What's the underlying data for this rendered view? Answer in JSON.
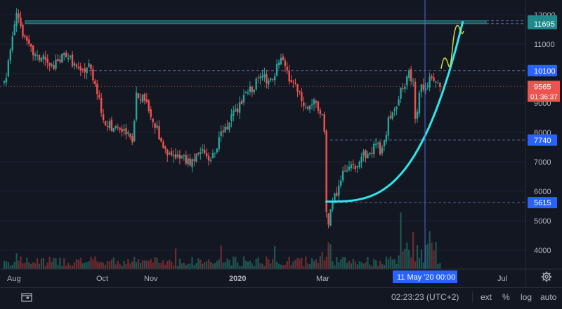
{
  "chart_data": {
    "type": "candlestick",
    "title": "",
    "ylim": [
      3500,
      12400
    ],
    "y_ticks": [
      4000,
      5000,
      6000,
      7000,
      8000,
      9000,
      10000,
      11000,
      12000
    ],
    "x_tick_labels": [
      "Aug",
      "Oct",
      "Nov",
      "2020",
      "Mar",
      "Jul"
    ],
    "crosshair_x_label": "11 May '20   00:00",
    "price_series": [
      [
        0,
        9700
      ],
      [
        2,
        10300
      ],
      [
        4,
        11200
      ],
      [
        6,
        12200
      ],
      [
        8,
        11600
      ],
      [
        10,
        11100
      ],
      [
        13,
        10800
      ],
      [
        16,
        10500
      ],
      [
        19,
        10600
      ],
      [
        22,
        10200
      ],
      [
        26,
        10400
      ],
      [
        30,
        10700
      ],
      [
        33,
        10400
      ],
      [
        37,
        10000
      ],
      [
        41,
        10300
      ],
      [
        44,
        9700
      ],
      [
        46,
        9200
      ],
      [
        48,
        8300
      ],
      [
        50,
        8300
      ],
      [
        53,
        8100
      ],
      [
        56,
        8100
      ],
      [
        59,
        8000
      ],
      [
        62,
        7600
      ],
      [
        63,
        8400
      ],
      [
        64,
        9300
      ],
      [
        66,
        9100
      ],
      [
        68,
        9200
      ],
      [
        70,
        8800
      ],
      [
        72,
        8300
      ],
      [
        74,
        8100
      ],
      [
        76,
        7600
      ],
      [
        78,
        7300
      ],
      [
        81,
        7200
      ],
      [
        84,
        7200
      ],
      [
        87,
        7100
      ],
      [
        90,
        7000
      ],
      [
        93,
        7200
      ],
      [
        96,
        7400
      ],
      [
        99,
        7100
      ],
      [
        102,
        7300
      ],
      [
        105,
        7900
      ],
      [
        108,
        8200
      ],
      [
        111,
        8600
      ],
      [
        114,
        8900
      ],
      [
        117,
        9300
      ],
      [
        120,
        9500
      ],
      [
        123,
        9800
      ],
      [
        125,
        9900
      ],
      [
        127,
        9800
      ],
      [
        130,
        9700
      ],
      [
        132,
        10200
      ],
      [
        134,
        10400
      ],
      [
        136,
        10300
      ],
      [
        138,
        9800
      ],
      [
        140,
        9700
      ],
      [
        142,
        9400
      ],
      [
        144,
        9100
      ],
      [
        146,
        8800
      ],
      [
        148,
        8900
      ],
      [
        150,
        9100
      ],
      [
        152,
        8700
      ],
      [
        154,
        8500
      ],
      [
        155,
        8100
      ],
      [
        156,
        5400
      ],
      [
        157,
        4900
      ],
      [
        158,
        5300
      ],
      [
        160,
        5800
      ],
      [
        162,
        6200
      ],
      [
        164,
        6700
      ],
      [
        166,
        6600
      ],
      [
        168,
        6800
      ],
      [
        170,
        6900
      ],
      [
        172,
        7100
      ],
      [
        174,
        7300
      ],
      [
        176,
        7200
      ],
      [
        178,
        7400
      ],
      [
        180,
        7700
      ],
      [
        182,
        7400
      ],
      [
        184,
        7600
      ],
      [
        186,
        8400
      ],
      [
        188,
        8800
      ],
      [
        190,
        9000
      ],
      [
        192,
        9400
      ],
      [
        194,
        9600
      ],
      [
        196,
        10000
      ],
      [
        198,
        9700
      ],
      [
        199,
        8600
      ],
      [
        200,
        8800
      ],
      [
        202,
        9600
      ],
      [
        204,
        9500
      ],
      [
        206,
        9800
      ],
      [
        208,
        9700
      ],
      [
        210,
        9600
      ],
      [
        211,
        9565
      ]
    ],
    "level_lines": [
      {
        "label": "11795",
        "value": 11795
      },
      {
        "label": "11695",
        "value": 11695
      },
      {
        "label": "10100",
        "value": 10100
      },
      {
        "label": "7740",
        "value": 7740
      },
      {
        "label": "5615",
        "value": 5615
      }
    ],
    "resistance_zone": [
      11695,
      11795
    ],
    "current_price": {
      "label": "9565",
      "value": 9565,
      "countdown": "01:36:37"
    },
    "colors": {
      "background": "#131722",
      "up": "#26a69a",
      "down": "#ef5350",
      "curve": "#2ee6ea",
      "projection": "#d6e34a",
      "level_tag": "#2962ff",
      "zone": "#1e8a8c",
      "crosshair": "#4f6bd8"
    }
  },
  "bottom_bar": {
    "time": "02:23:23 (UTC+2)",
    "ext": "ext",
    "percent": "%",
    "log": "log",
    "auto": "auto"
  }
}
